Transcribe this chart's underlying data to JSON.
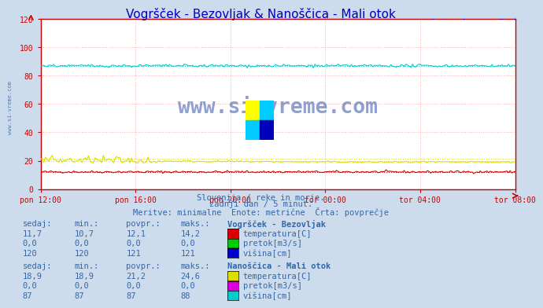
{
  "title": "Vogršček - Bezovljak & Nanoščica - Mali otok",
  "title_color": "#0000bb",
  "bg_color": "#ccdcec",
  "plot_bg_color": "#ffffff",
  "grid_color": "#ffaaaa",
  "axis_color": "#cc0000",
  "text_color": "#3366aa",
  "xlabel_ticks": [
    "pon 12:00",
    "pon 16:00",
    "pon 20:00",
    "tor 00:00",
    "tor 04:00",
    "tor 08:00"
  ],
  "ylim": [
    0,
    120
  ],
  "yticks": [
    0,
    20,
    40,
    60,
    80,
    100,
    120
  ],
  "n_points": 288,
  "station1": {
    "name": "Vogršček - Bezovljak",
    "temp_color": "#dd0000",
    "temp_avg": 12.1,
    "temp_min": 10.7,
    "temp_max": 14.2,
    "temp_sedaj": 11.7,
    "pretok_color": "#00cc00",
    "pretok_avg": 0.0,
    "visina_color": "#0000cc",
    "visina_avg": 121,
    "visina_sedaj": 120,
    "visina_min": 120,
    "visina_max": 121
  },
  "station2": {
    "name": "Nanoščica - Mali otok",
    "temp_color": "#dddd00",
    "temp_avg": 21.2,
    "temp_min": 18.9,
    "temp_max": 24.6,
    "temp_sedaj": 18.9,
    "pretok_color": "#dd00dd",
    "pretok_avg": 0.0,
    "visina_color": "#00cccc",
    "visina_avg": 87,
    "visina_sedaj": 87,
    "visina_min": 87,
    "visina_max": 88
  },
  "subtitle1": "Slovenija / reke in morje.",
  "subtitle2": "zadnji dan / 5 minut.",
  "subtitle3": "Meritve: minimalne  Enote: metrične  Črta: povprečje",
  "watermark": "www.si-vreme.com",
  "side_watermark": "www.si-vreme.com"
}
